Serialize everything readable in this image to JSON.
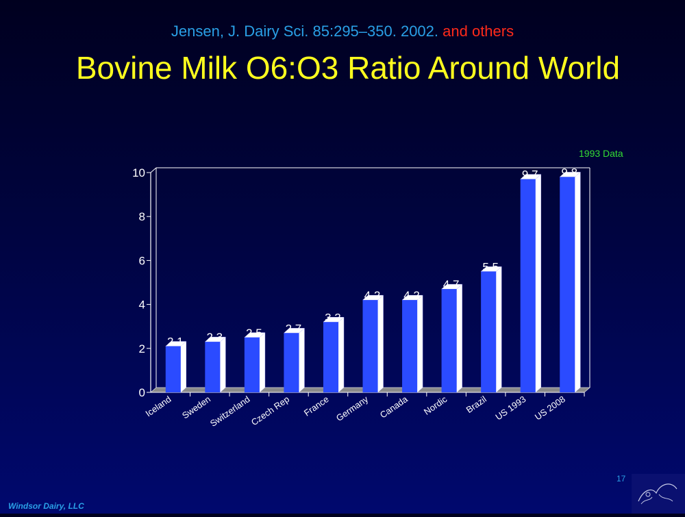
{
  "header": {
    "citation": "Jensen, J. Dairy Sci. 85:295–350. 2002.",
    "citation_extra": "and others",
    "title": "Bovine Milk O6:O3 Ratio Around World"
  },
  "note": "1993 Data",
  "footer": {
    "company": "Windsor Dairy, LLC",
    "page_number": "17"
  },
  "colors": {
    "bar_face": "#2b4bff",
    "bar_side": "#ffffff",
    "title": "#ffff1e",
    "citation": "#2aa0e6",
    "citation_extra": "#ff2a1a",
    "note": "#33dd33"
  },
  "chart_data": {
    "type": "bar",
    "style": "3d",
    "categories": [
      "Iceland",
      "Sweden",
      "Switzerland",
      "Czech Rep",
      "France",
      "Germany",
      "Canada",
      "Nordic",
      "Brazil",
      "US 1993",
      "US 2008"
    ],
    "values": [
      2.1,
      2.3,
      2.5,
      2.7,
      3.2,
      4.2,
      4.2,
      4.7,
      5.5,
      9.7,
      9.8
    ],
    "data_labels": [
      "2.1",
      "2.3",
      "2.5",
      "2.7",
      "3.2",
      "4.2",
      "4.2",
      "4.7",
      "5.5",
      "9.7",
      "9.8"
    ],
    "yticks": [
      "0",
      "2",
      "4",
      "6",
      "8",
      "10"
    ],
    "ylim": [
      0,
      10
    ],
    "grid": false,
    "title": "",
    "xlabel": "",
    "ylabel": ""
  }
}
